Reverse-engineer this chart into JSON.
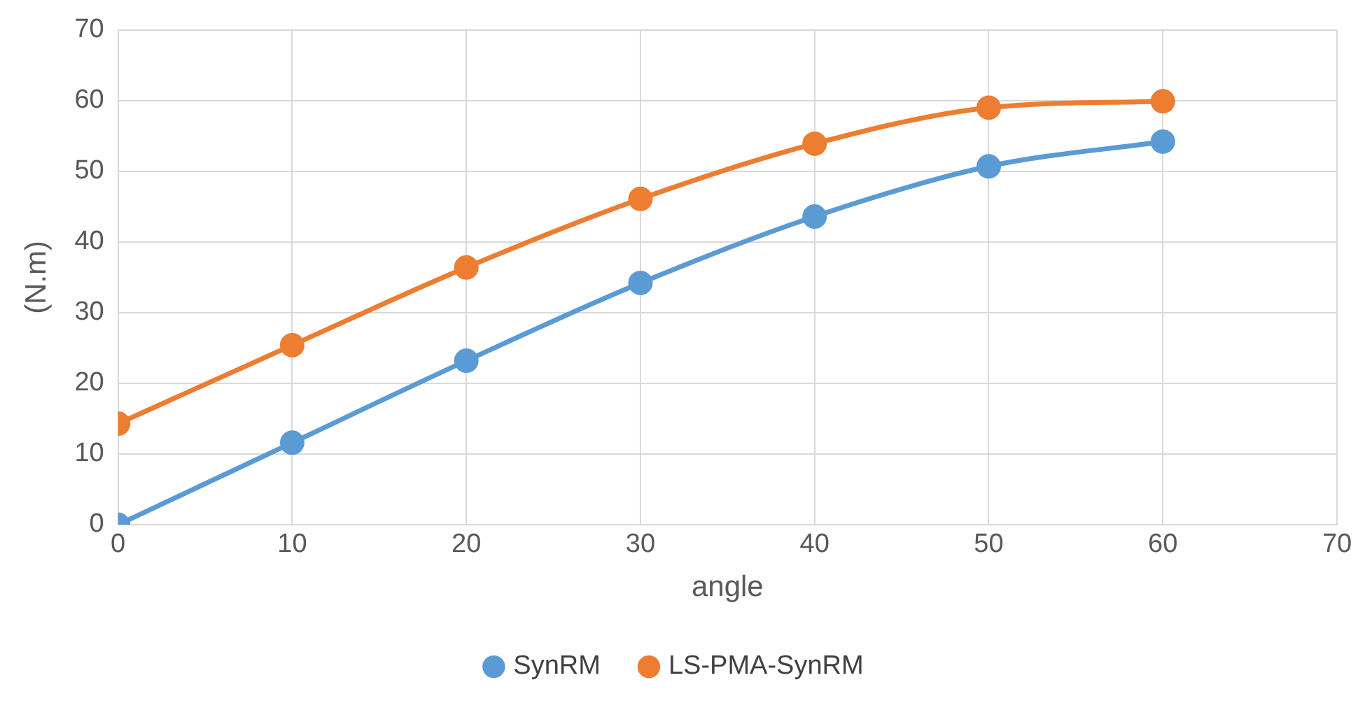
{
  "chart_data": {
    "type": "line",
    "xlabel": "angle",
    "ylabel": "(N.m)",
    "xlim": [
      0,
      70
    ],
    "xticks": [
      0,
      10,
      20,
      30,
      40,
      50,
      60,
      70
    ],
    "ylim": [
      0,
      70
    ],
    "yticks": [
      0,
      10,
      20,
      30,
      40,
      50,
      60,
      70
    ],
    "x": [
      0,
      10,
      20,
      30,
      40,
      50,
      60
    ],
    "series": [
      {
        "name": "SynRM",
        "color": "#5b9bd5",
        "values": [
          0,
          11.6,
          23.2,
          34.2,
          43.6,
          50.7,
          54.2
        ]
      },
      {
        "name": "LS-PMA-SynRM",
        "color": "#ed7d31",
        "values": [
          14.3,
          25.4,
          36.4,
          46.1,
          53.9,
          59.0,
          59.9
        ]
      }
    ],
    "grid": true,
    "legend": "bottom",
    "marker": "circle",
    "line_style": "solid"
  }
}
